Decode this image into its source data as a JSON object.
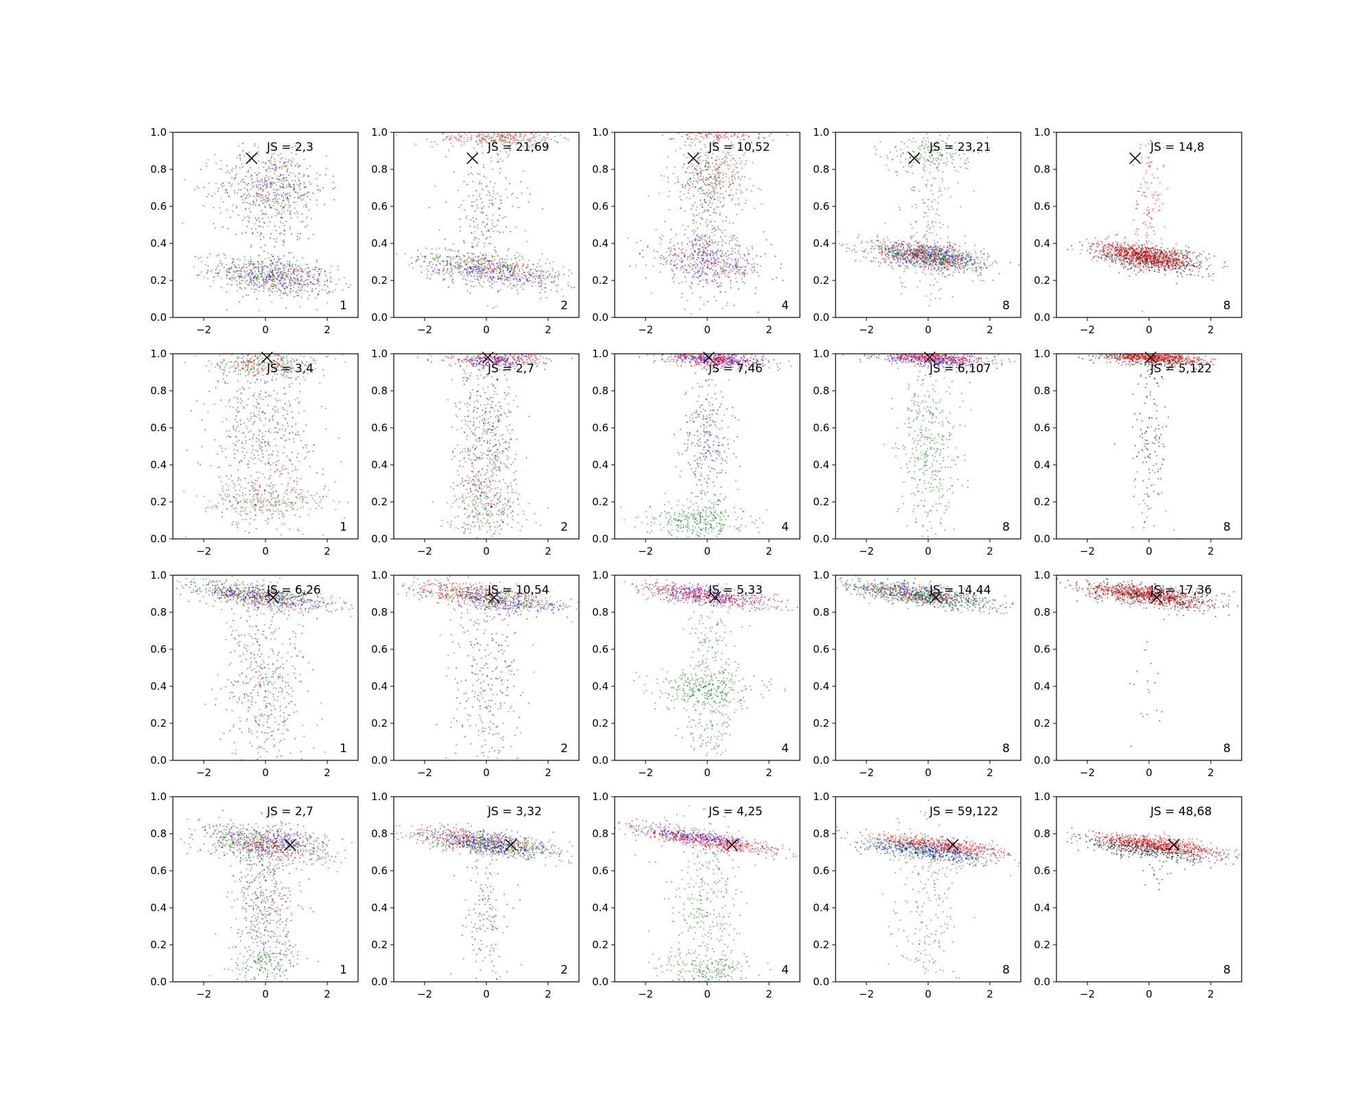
{
  "chart_data": {
    "type": "scatter",
    "grid": false,
    "layout": {
      "rows": 4,
      "cols": 5
    },
    "x_ticks": [
      "−2",
      "0",
      "2"
    ],
    "y_ticks": [
      "0.0",
      "0.2",
      "0.4",
      "0.6",
      "0.8",
      "1.0"
    ],
    "xlim": [
      -3,
      3
    ],
    "ylim": [
      0,
      1
    ],
    "colors": {
      "blue": "#0000ff",
      "green": "#008000",
      "red": "#ff0000",
      "black": "#000000"
    },
    "panels": [
      {
        "js": "JS = 2,3",
        "corner": "1",
        "marker": [
          -0.45,
          0.86
        ]
      },
      {
        "js": "JS = 21,69",
        "corner": "2",
        "marker": [
          -0.45,
          0.86
        ]
      },
      {
        "js": "JS = 10,52",
        "corner": "4",
        "marker": [
          -0.45,
          0.86
        ]
      },
      {
        "js": "JS = 23,21",
        "corner": "8",
        "marker": [
          -0.45,
          0.86
        ]
      },
      {
        "js": "JS = 14,8",
        "corner": "8",
        "marker": [
          -0.45,
          0.86
        ]
      },
      {
        "js": "JS = 3,4",
        "corner": "1",
        "marker": [
          0.05,
          0.98
        ]
      },
      {
        "js": "JS = 2,7",
        "corner": "2",
        "marker": [
          0.05,
          0.98
        ]
      },
      {
        "js": "JS = 7,46",
        "corner": "4",
        "marker": [
          0.05,
          0.98
        ]
      },
      {
        "js": "JS = 6,107",
        "corner": "8",
        "marker": [
          0.05,
          0.98
        ]
      },
      {
        "js": "JS = 5,122",
        "corner": "8",
        "marker": [
          0.05,
          0.98
        ]
      },
      {
        "js": "JS = 6,26",
        "corner": "1",
        "marker": [
          0.25,
          0.88
        ]
      },
      {
        "js": "JS = 10,54",
        "corner": "2",
        "marker": [
          0.25,
          0.88
        ]
      },
      {
        "js": "JS = 5,33",
        "corner": "4",
        "marker": [
          0.25,
          0.88
        ]
      },
      {
        "js": "JS = 14,44",
        "corner": "8",
        "marker": [
          0.25,
          0.88
        ]
      },
      {
        "js": "JS = 17,36",
        "corner": "8",
        "marker": [
          0.25,
          0.88
        ]
      },
      {
        "js": "JS = 2,7",
        "corner": "1",
        "marker": [
          0.8,
          0.74
        ]
      },
      {
        "js": "JS = 3,32",
        "corner": "2",
        "marker": [
          0.8,
          0.74
        ]
      },
      {
        "js": "JS = 4,25",
        "corner": "4",
        "marker": [
          0.8,
          0.74
        ]
      },
      {
        "js": "JS = 59,122",
        "corner": "8",
        "marker": [
          0.8,
          0.74
        ]
      },
      {
        "js": "JS = 48,68",
        "corner": "8",
        "marker": [
          0.8,
          0.74
        ]
      }
    ]
  }
}
